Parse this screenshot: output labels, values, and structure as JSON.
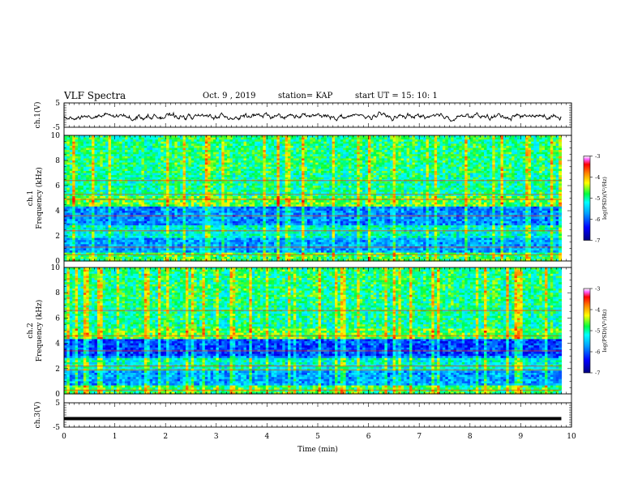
{
  "header": {
    "title": "VLF Spectra",
    "date": "Oct. 9 , 2019",
    "station": "station= KAP",
    "start_ut": "start UT = 15: 10: 1"
  },
  "colors": {
    "colormap": [
      "#00007f",
      "#0000ff",
      "#0080ff",
      "#00ffff",
      "#00ff60",
      "#80ff00",
      "#ffff00",
      "#ff8000",
      "#ff0000",
      "#ff00ff",
      "#ffffff"
    ],
    "trace": "#000000"
  },
  "chart_data": [
    {
      "type": "line",
      "id": "ch1",
      "ylabel": "ch.1(V)",
      "ylim": [
        -5,
        5
      ],
      "y_ticks": [
        "5",
        "-5"
      ],
      "x_range": [
        0,
        10
      ],
      "note_series": "noisy waveform trace spanning approx 0 to 9.8 min",
      "y_range_estimate": [
        -3.5,
        2.0
      ]
    },
    {
      "type": "heatmap",
      "id": "ch1-spectrogram",
      "ylabel": "ch.1\nFrequency (kHz)",
      "ylim": [
        0,
        10
      ],
      "y_ticks": [
        "0",
        "2",
        "4",
        "6",
        "8",
        "10"
      ],
      "x_range": [
        0,
        9.8
      ],
      "colorbar": {
        "label": "log(PSD)(V²/Hz)",
        "range": [
          -7,
          -3
        ],
        "ticks": [
          "-3",
          "-4",
          "-5",
          "-6",
          "-7"
        ]
      }
    },
    {
      "type": "heatmap",
      "id": "ch2-spectrogram",
      "ylabel": "ch.2\nFrequency (kHz)",
      "ylim": [
        0,
        10
      ],
      "y_ticks": [
        "0",
        "2",
        "4",
        "6",
        "8",
        "10"
      ],
      "x_range": [
        0,
        9.8
      ],
      "colorbar": {
        "label": "log(PSD)(V²/Hz)",
        "range": [
          -7,
          -3
        ],
        "ticks": [
          "-3",
          "-4",
          "-5",
          "-6",
          "-7"
        ]
      }
    },
    {
      "type": "line",
      "id": "ch3",
      "ylabel": "ch.3(V)",
      "ylim": [
        -5,
        5
      ],
      "y_ticks": [
        "5",
        "-5"
      ],
      "x": [
        0,
        9.8
      ],
      "y": [
        -1.5,
        -1.5
      ]
    }
  ],
  "xaxis": {
    "label": "Time (min)",
    "ticks": [
      "0",
      "1",
      "2",
      "3",
      "4",
      "5",
      "6",
      "7",
      "8",
      "9",
      "10"
    ],
    "range": [
      0,
      10
    ]
  }
}
